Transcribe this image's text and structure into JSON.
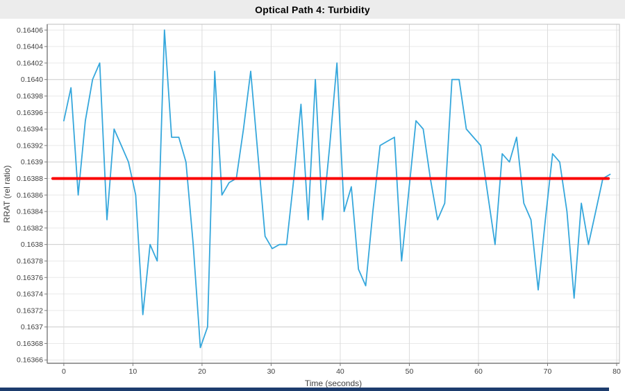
{
  "window": {
    "title": "Optical Path 4: Turbidity",
    "title_bar_color": "#ececec",
    "bottom_bar_color": "#1d3c6d"
  },
  "chart_data": {
    "type": "line",
    "title": "Optical Path 4: Turbidity",
    "xlabel": "Time (seconds)",
    "ylabel": "RRAT (rel ratio)",
    "xlim": [
      -2.4,
      80.4
    ],
    "ylim": [
      0.163656,
      0.164067
    ],
    "grid": true,
    "x_ticks": [
      0,
      10,
      20,
      30,
      40,
      50,
      60,
      70,
      80
    ],
    "y_ticks": [
      {
        "label": "0.16406",
        "value": 0.16406,
        "major": false
      },
      {
        "label": "0.16404",
        "value": 0.16404,
        "major": false
      },
      {
        "label": "0.16402",
        "value": 0.16402,
        "major": false
      },
      {
        "label": "0.1640",
        "value": 0.164,
        "major": true
      },
      {
        "label": "0.16398",
        "value": 0.16398,
        "major": false
      },
      {
        "label": "0.16396",
        "value": 0.16396,
        "major": false
      },
      {
        "label": "0.16394",
        "value": 0.16394,
        "major": false
      },
      {
        "label": "0.16392",
        "value": 0.16392,
        "major": false
      },
      {
        "label": "0.1639",
        "value": 0.1639,
        "major": true
      },
      {
        "label": "0.16388",
        "value": 0.16388,
        "major": false
      },
      {
        "label": "0.16386",
        "value": 0.16386,
        "major": false
      },
      {
        "label": "0.16384",
        "value": 0.16384,
        "major": false
      },
      {
        "label": "0.16382",
        "value": 0.16382,
        "major": false
      },
      {
        "label": "0.1638",
        "value": 0.1638,
        "major": true
      },
      {
        "label": "0.16378",
        "value": 0.16378,
        "major": false
      },
      {
        "label": "0.16376",
        "value": 0.16376,
        "major": false
      },
      {
        "label": "0.16374",
        "value": 0.16374,
        "major": false
      },
      {
        "label": "0.16372",
        "value": 0.16372,
        "major": false
      },
      {
        "label": "0.1637",
        "value": 0.1637,
        "major": true
      },
      {
        "label": "0.16368",
        "value": 0.16368,
        "major": false
      },
      {
        "label": "0.16366",
        "value": 0.16366,
        "major": false
      }
    ],
    "series": [
      {
        "name": "turbidity-rrat",
        "color": "#35a7dc",
        "x_start": 0,
        "x_step": 1.04,
        "values": [
          0.16395,
          0.16399,
          0.16386,
          0.16395,
          0.164,
          0.16402,
          0.16383,
          0.16394,
          0.16392,
          0.1639,
          0.16386,
          0.163715,
          0.1638,
          0.16378,
          0.16406,
          0.16393,
          0.16393,
          0.1639,
          0.1638,
          0.163675,
          0.1637,
          0.16401,
          0.16386,
          0.163875,
          0.16388,
          0.16394,
          0.16401,
          0.16391,
          0.16381,
          0.163795,
          0.1638,
          0.1638,
          0.16388,
          0.16397,
          0.16383,
          0.164,
          0.16383,
          0.16392,
          0.16402,
          0.16384,
          0.16387,
          0.16377,
          0.16375,
          0.16384,
          0.16392,
          0.163925,
          0.16393,
          0.16378,
          0.163865,
          0.16395,
          0.16394,
          0.16388,
          0.16383,
          0.16385,
          0.164,
          0.164,
          0.16394,
          0.16393,
          0.16392,
          0.16386,
          0.1638,
          0.16391,
          0.1639,
          0.16393,
          0.16385,
          0.16383,
          0.163745,
          0.16383,
          0.16391,
          0.1639,
          0.16384,
          0.163735,
          0.16385,
          0.1638,
          0.16384,
          0.16388,
          0.163885
        ]
      }
    ],
    "mean_line": {
      "name": "mean-reference",
      "color": "#fb0000",
      "value": 0.16388,
      "x_from": -1.6,
      "x_to": 78.8
    },
    "colors": {
      "grid_minor": "#e9e9e9",
      "grid_major": "#cbcbcb",
      "grid_vertical": "#dcdcdc",
      "axis": "#7a7a7a",
      "tick_text": "#3f3f3f"
    }
  }
}
